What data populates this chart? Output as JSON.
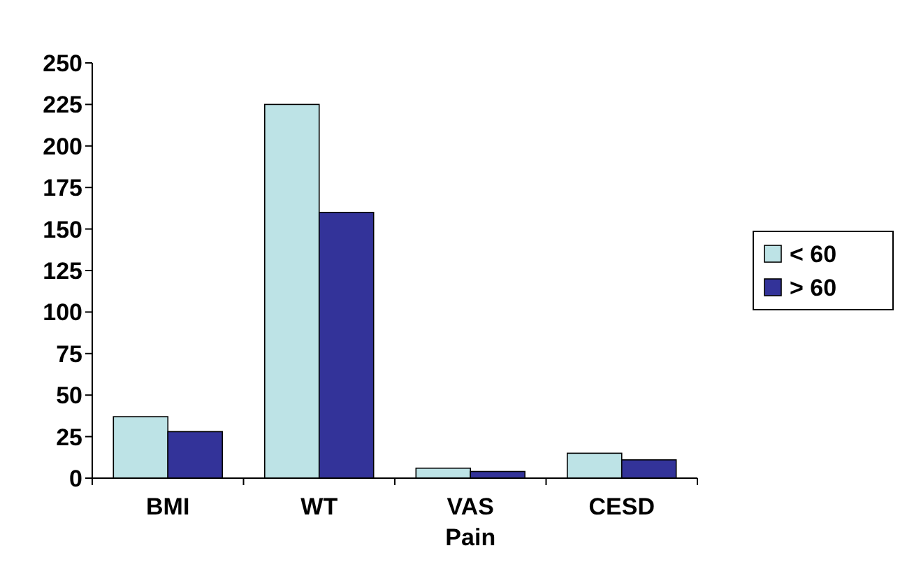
{
  "chart_data": {
    "type": "bar",
    "categories": [
      "BMI",
      "WT",
      "VAS Pain",
      "CESD"
    ],
    "series": [
      {
        "name": "< 60",
        "color": "#bde3e6",
        "values": [
          37,
          225,
          6,
          15
        ]
      },
      {
        "name": "> 60",
        "color": "#333399",
        "values": [
          28,
          160,
          4,
          11
        ]
      }
    ],
    "ylim": [
      0,
      250
    ],
    "yticks": [
      0,
      25,
      50,
      75,
      100,
      125,
      150,
      175,
      200,
      225,
      250
    ],
    "grid": false,
    "legend": "right"
  }
}
